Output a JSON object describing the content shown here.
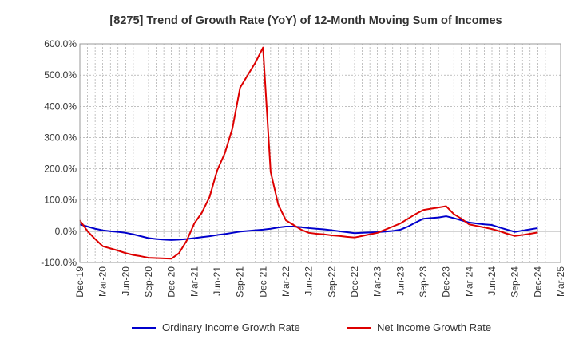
{
  "chart_data": {
    "type": "line",
    "title": "[8275]  Trend of Growth Rate (YoY) of 12-Month Moving Sum of Incomes",
    "x": [
      "Dec-19",
      "Jan-20",
      "Feb-20",
      "Mar-20",
      "Apr-20",
      "May-20",
      "Jun-20",
      "Jul-20",
      "Aug-20",
      "Sep-20",
      "Oct-20",
      "Nov-20",
      "Dec-20",
      "Jan-21",
      "Feb-21",
      "Mar-21",
      "Apr-21",
      "May-21",
      "Jun-21",
      "Jul-21",
      "Aug-21",
      "Sep-21",
      "Oct-21",
      "Nov-21",
      "Dec-21",
      "Jan-22",
      "Feb-22",
      "Mar-22",
      "Apr-22",
      "May-22",
      "Jun-22",
      "Jul-22",
      "Aug-22",
      "Sep-22",
      "Oct-22",
      "Nov-22",
      "Dec-22",
      "Jan-23",
      "Feb-23",
      "Mar-23",
      "Apr-23",
      "May-23",
      "Jun-23",
      "Jul-23",
      "Aug-23",
      "Sep-23",
      "Oct-23",
      "Nov-23",
      "Dec-23",
      "Jan-24",
      "Feb-24",
      "Mar-24",
      "Apr-24",
      "May-24",
      "Jun-24",
      "Jul-24",
      "Aug-24",
      "Sep-24",
      "Oct-24",
      "Nov-24",
      "Dec-24"
    ],
    "x_tick_labels": [
      "Dec-19",
      "Mar-20",
      "Jun-20",
      "Sep-20",
      "Dec-20",
      "Mar-21",
      "Jun-21",
      "Sep-21",
      "Dec-21",
      "Mar-22",
      "Jun-22",
      "Sep-22",
      "Dec-22",
      "Mar-23",
      "Jun-23",
      "Sep-23",
      "Dec-23",
      "Mar-24",
      "Jun-24",
      "Sep-24",
      "Dec-24",
      "Mar-25"
    ],
    "y_ticks": [
      -100,
      0,
      100,
      200,
      300,
      400,
      500,
      600
    ],
    "y_tick_labels": [
      "-100.0%",
      "0.0%",
      "100.0%",
      "200.0%",
      "300.0%",
      "400.0%",
      "500.0%",
      "600.0%"
    ],
    "ylim": [
      -100,
      600
    ],
    "grid": true,
    "legend_position": "bottom",
    "series": [
      {
        "name": "Ordinary Income Growth Rate",
        "color": "#0000cc",
        "values": [
          22,
          15,
          8,
          3,
          0,
          -2,
          -5,
          -10,
          -16,
          -22,
          -25,
          -27,
          -28,
          -27,
          -25,
          -22,
          -19,
          -16,
          -12,
          -9,
          -5,
          -1,
          1,
          3,
          5,
          8,
          12,
          15,
          15,
          13,
          10,
          8,
          6,
          3,
          0,
          -3,
          -6,
          -5,
          -4,
          -3,
          -1,
          1,
          5,
          15,
          28,
          40,
          42,
          44,
          48,
          42,
          35,
          28,
          25,
          22,
          20,
          12,
          5,
          -2,
          2,
          6,
          10
        ]
      },
      {
        "name": "Net Income Growth Rate",
        "color": "#dd0000",
        "values": [
          35,
          0,
          -25,
          -48,
          -55,
          -62,
          -70,
          -76,
          -80,
          -85,
          -86,
          -87,
          -88,
          -70,
          -30,
          25,
          60,
          110,
          195,
          250,
          330,
          460,
          500,
          540,
          588,
          190,
          85,
          35,
          20,
          5,
          -5,
          -8,
          -10,
          -13,
          -15,
          -18,
          -20,
          -15,
          -10,
          -5,
          5,
          15,
          25,
          40,
          55,
          68,
          72,
          76,
          80,
          55,
          40,
          22,
          17,
          12,
          7,
          0,
          -8,
          -15,
          -12,
          -8,
          -4
        ]
      }
    ]
  }
}
